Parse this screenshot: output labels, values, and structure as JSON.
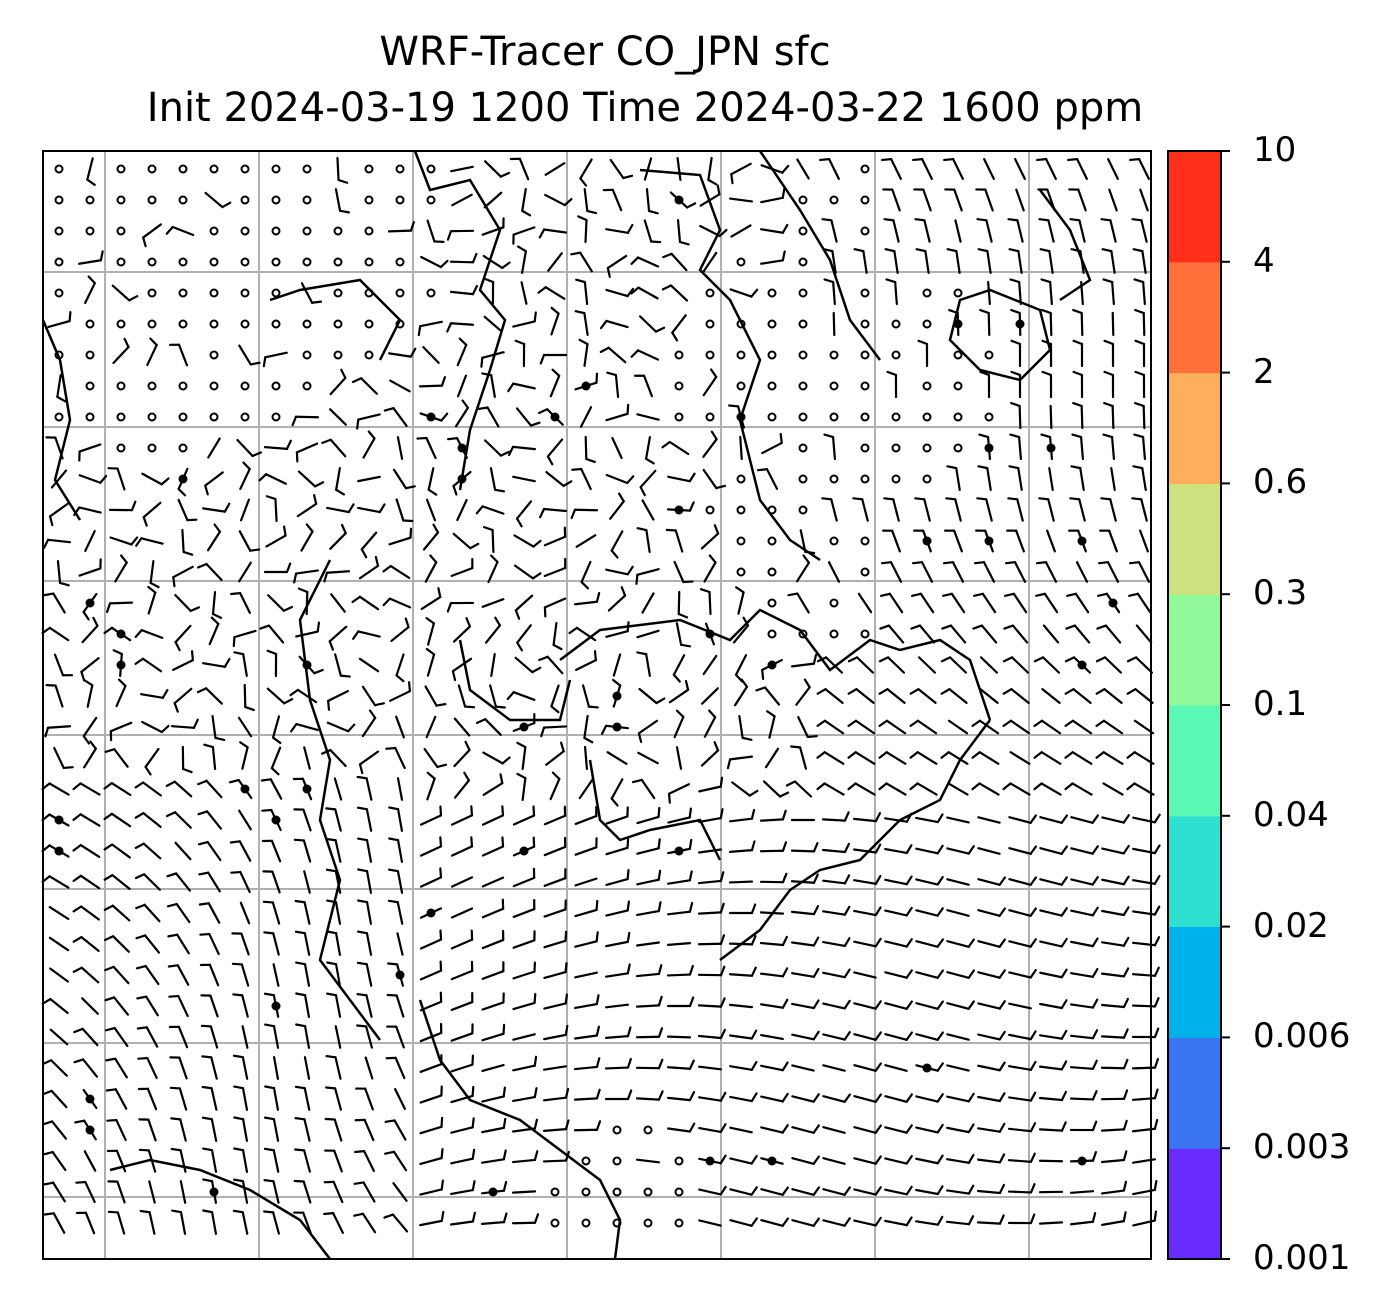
{
  "title": {
    "line1": "WRF-Tracer CO_JPN sfc",
    "line2": "Init 2024-03-19 1200 Time 2024-03-22 1600 ppm"
  },
  "colorbar": {
    "levels": [
      "0.001",
      "0.003",
      "0.006",
      "0.02",
      "0.04",
      "0.1",
      "0.3",
      "0.6",
      "2",
      "4",
      "10"
    ],
    "colors": [
      "#6a2bff",
      "#3a76f0",
      "#00b2ea",
      "#2ee0d0",
      "#5cf9b6",
      "#92f99a",
      "#cde27f",
      "#ffae5c",
      "#ff703a",
      "#ff2f1a"
    ]
  }
}
